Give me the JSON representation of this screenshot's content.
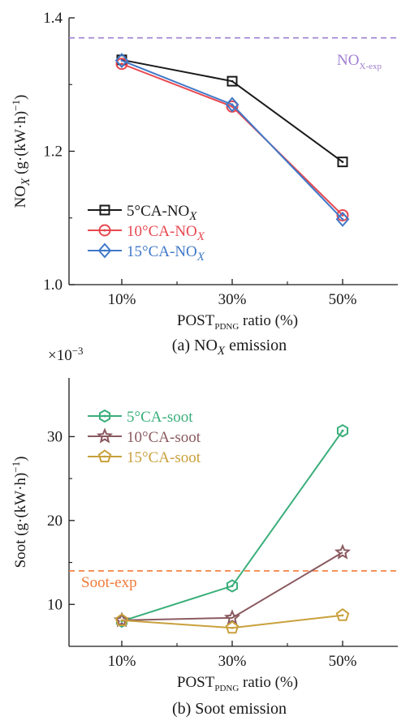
{
  "chart_data": [
    {
      "type": "line",
      "caption": "(a) NO_X emission",
      "xlabel": "POST_PDNG ratio (%)",
      "ylabel": "NO_X (g·(kW·h)^−1)",
      "categories": [
        "10%",
        "30%",
        "50%"
      ],
      "ylim": [
        1.0,
        1.4
      ],
      "yticks": [
        "1.0",
        "1.2",
        "1.4"
      ],
      "grid": false,
      "legend_position": "lower-left",
      "series": [
        {
          "name": "5°CA-NO_X",
          "color": "#1a1a1a",
          "marker": "square",
          "values": [
            1.337,
            1.305,
            1.184
          ]
        },
        {
          "name": "10°CA-NO_X",
          "color": "#e8474f",
          "marker": "circle",
          "values": [
            1.331,
            1.267,
            1.104
          ]
        },
        {
          "name": "15°CA-NO_X",
          "color": "#3f78c8",
          "marker": "diamond",
          "values": [
            1.336,
            1.27,
            1.098
          ]
        }
      ],
      "reference_line": {
        "label": "NO_X-exp",
        "value": 1.37,
        "color": "#9f7fd0"
      }
    },
    {
      "type": "line",
      "caption": "(b) Soot emission",
      "xlabel": "POST_PDNG ratio (%)",
      "ylabel": "Soot (g·(kW·h)^−1)",
      "scale_label": "×10^−3",
      "categories": [
        "10%",
        "30%",
        "50%"
      ],
      "ylim": [
        5,
        37
      ],
      "yticks": [
        "10",
        "20",
        "30"
      ],
      "grid": false,
      "legend_position": "upper-left",
      "series": [
        {
          "name": "5°CA-soot",
          "color": "#3aae7a",
          "marker": "hexagon",
          "values": [
            8.0,
            12.2,
            30.7
          ]
        },
        {
          "name": "10°CA-soot",
          "color": "#8a5a60",
          "marker": "star",
          "values": [
            8.1,
            8.4,
            16.2
          ]
        },
        {
          "name": "15°CA-soot",
          "color": "#c9a03c",
          "marker": "pentagon",
          "values": [
            8.1,
            7.2,
            8.7
          ]
        }
      ],
      "reference_line": {
        "label": "Soot-exp",
        "value": 14.0,
        "color": "#f07a3a"
      }
    }
  ]
}
